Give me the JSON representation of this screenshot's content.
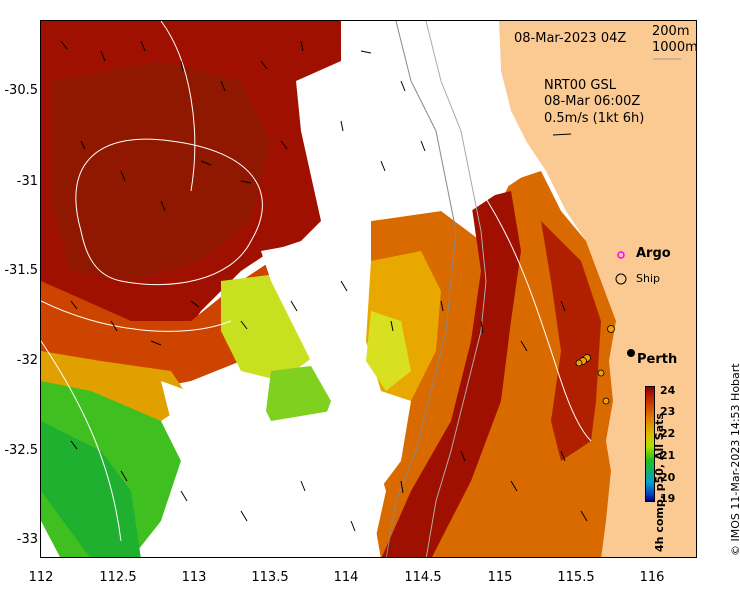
{
  "map": {
    "timestamp": "08-Mar-2023 04Z",
    "contours": [
      "200m",
      "1000m"
    ],
    "current_product": "NRT00 GSL",
    "current_time": "08-Mar 06:00Z",
    "current_scale": "0.5m/s (1kt 6h)",
    "legend": {
      "argo": "Argo",
      "ship": "Ship",
      "argo_color": "#ff00ff"
    },
    "city": "Perth",
    "x_ticks": [
      "112",
      "112.5",
      "113",
      "113.5",
      "114",
      "114.5",
      "115",
      "115.5",
      "116"
    ],
    "y_ticks": [
      "-30.5",
      "-31",
      "-31.5",
      "-32",
      "-32.5",
      "-33"
    ],
    "colorbar": {
      "ticks": [
        "24",
        "23",
        "22",
        "21",
        "20",
        "19"
      ],
      "title": "4h comp, p50, All Sats"
    },
    "credit": "© IMOS 11-Mar-2023 14:53 Hobart",
    "colors": {
      "land": "#fbc992",
      "sst_hot": "#a01000",
      "sst_warm": "#d06000",
      "sst_mid": "#e8b000",
      "sst_cool": "#c8e020",
      "sst_cold": "#30c020"
    }
  }
}
